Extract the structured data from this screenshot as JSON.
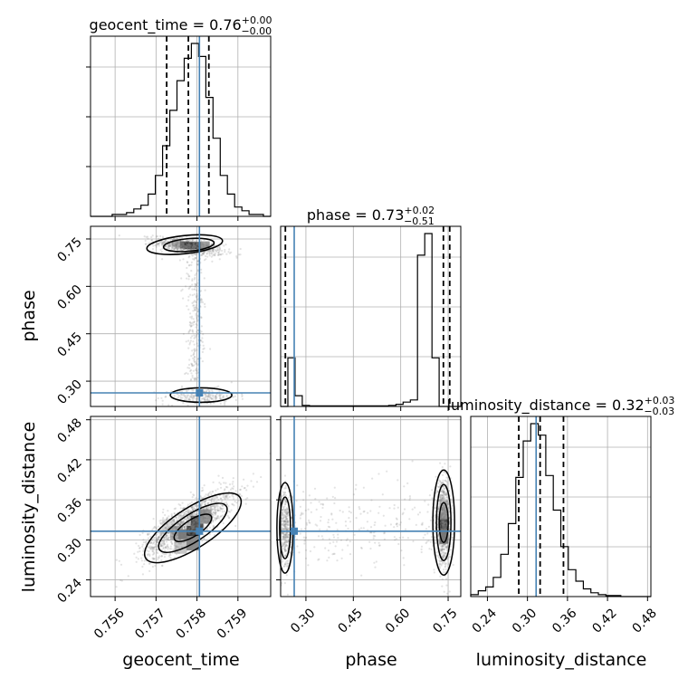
{
  "chart_data": {
    "type": "corner",
    "parameters": [
      "geocent_time",
      "phase",
      "luminosity_distance"
    ],
    "injection": {
      "geocent_time": 0.75806,
      "phase": 0.263,
      "luminosity_distance": 0.313
    },
    "ranges": {
      "geocent_time": [
        0.7554,
        0.7598
      ],
      "phase": [
        0.22,
        0.79
      ],
      "luminosity_distance": [
        0.215,
        0.485
      ]
    },
    "ticks": {
      "geocent_time": {
        "values": [
          0.756,
          0.757,
          0.758,
          0.759
        ],
        "labels": [
          "0.756",
          "0.757",
          "0.758",
          "0.759"
        ]
      },
      "phase": {
        "values": [
          0.3,
          0.45,
          0.6,
          0.75
        ],
        "labels": [
          "0.30",
          "0.45",
          "0.60",
          "0.75"
        ]
      },
      "luminosity_distance": {
        "values": [
          0.24,
          0.3,
          0.36,
          0.42,
          0.48
        ],
        "labels": [
          "0.24",
          "0.30",
          "0.36",
          "0.42",
          "0.48"
        ]
      }
    },
    "titles": {
      "geocent_time": {
        "main": "geocent_time = 0.76",
        "sup": "+0.00",
        "sub": "−0.00"
      },
      "phase": {
        "main": "phase = 0.73",
        "sup": "+0.02",
        "sub": "−0.51"
      },
      "luminosity_distance": {
        "main": "luminosity_distance = 0.32",
        "sup": "+0.03",
        "sub": "−0.03"
      }
    },
    "quantiles": {
      "geocent_time": [
        0.75726,
        0.75779,
        0.75829
      ],
      "phase": [
        0.235,
        0.735,
        0.755
      ],
      "luminosity_distance": [
        0.287,
        0.319,
        0.354
      ]
    },
    "histograms": {
      "geocent_time": [
        0,
        0,
        0,
        1,
        1,
        2,
        4,
        6,
        12,
        22,
        38,
        57,
        73,
        85,
        93,
        86,
        64,
        42,
        22,
        12,
        5,
        3,
        1,
        1,
        0
      ],
      "phase": [
        0,
        45,
        10,
        1,
        0.5,
        0.5,
        0.5,
        0.5,
        0.5,
        0.5,
        0.5,
        0.5,
        0.5,
        0.5,
        0.5,
        1,
        2,
        4,
        6,
        140,
        160,
        45,
        0,
        0,
        0
      ],
      "luminosity_distance": [
        1,
        3,
        5,
        10,
        22,
        38,
        62,
        81,
        90,
        84,
        63,
        45,
        26,
        14,
        8,
        4,
        2,
        1,
        0.5,
        0.5,
        0,
        0,
        0,
        0
      ]
    },
    "axis_labels": {
      "geocent_time": "geocent_time",
      "phase": "phase",
      "luminosity_distance": "luminosity_distance"
    },
    "colors": {
      "truth": "#4682b4",
      "hist": "#000000",
      "grid": "#b0b0b0",
      "samples": "#808080"
    },
    "grid": true
  }
}
